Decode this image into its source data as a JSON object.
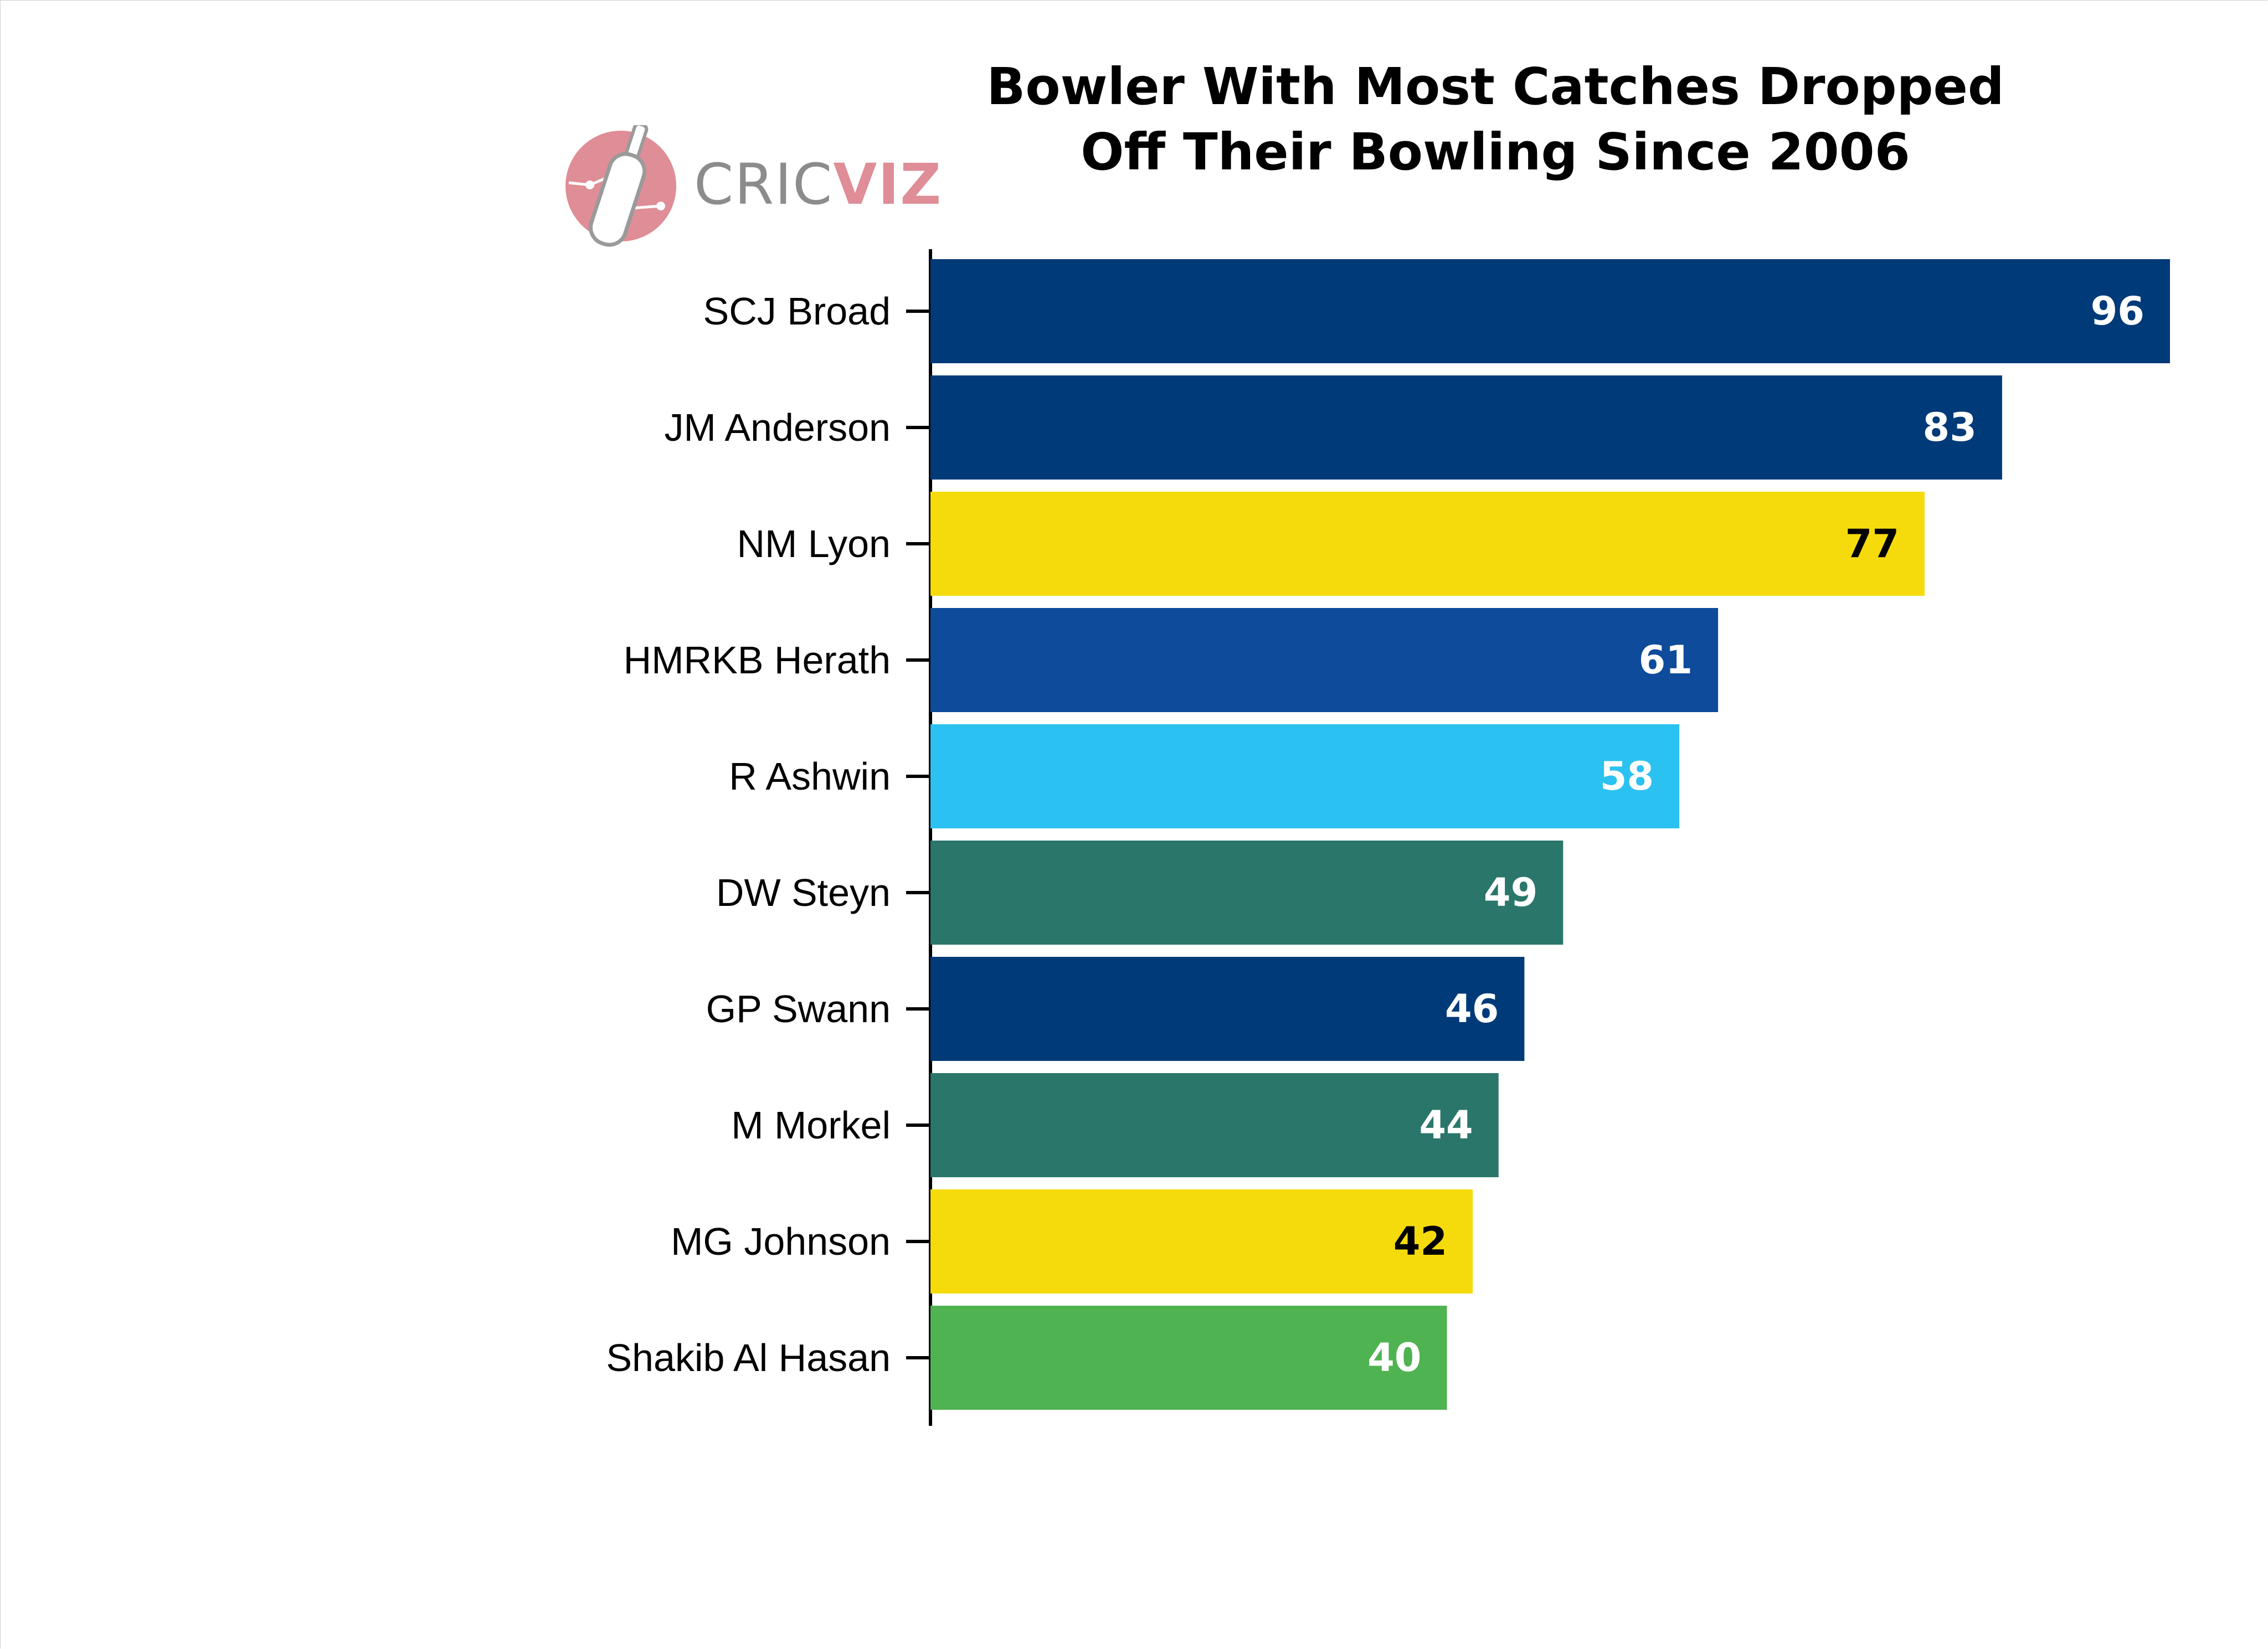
{
  "chart_data": {
    "type": "bar",
    "orientation": "horizontal",
    "title": "Bowler With Most Catches Dropped Off Their Bowling Since 2006",
    "title_lines": [
      "Bowler With Most Catches Dropped",
      "Off Their Bowling Since 2006"
    ],
    "xlabel": "",
    "ylabel": "",
    "xlim": [
      0,
      100
    ],
    "categories": [
      "SCJ Broad",
      "JM Anderson",
      "NM Lyon",
      "HMRKB Herath",
      "R Ashwin",
      "DW Steyn",
      "GP Swann",
      "M Morkel",
      "MG Johnson",
      "Shakib Al Hasan"
    ],
    "values": [
      96,
      83,
      77,
      61,
      58,
      49,
      46,
      44,
      42,
      40
    ],
    "bar_colors": [
      "#003a78",
      "#003a78",
      "#f6db0c",
      "#0e4b9a",
      "#2bc1f0",
      "#2a766b",
      "#003a78",
      "#2a766b",
      "#f6db0c",
      "#4fb351"
    ],
    "label_colors": [
      "#ffffff",
      "#ffffff",
      "#000000",
      "#ffffff",
      "#ffffff",
      "#ffffff",
      "#ffffff",
      "#ffffff",
      "#000000",
      "#ffffff"
    ],
    "grid": false,
    "data_labels": true
  },
  "logo": {
    "text_part1": "CRIC",
    "text_part2": "VIZ",
    "icon": "cricket-bat-icon",
    "circle_color": "#df8d96"
  }
}
